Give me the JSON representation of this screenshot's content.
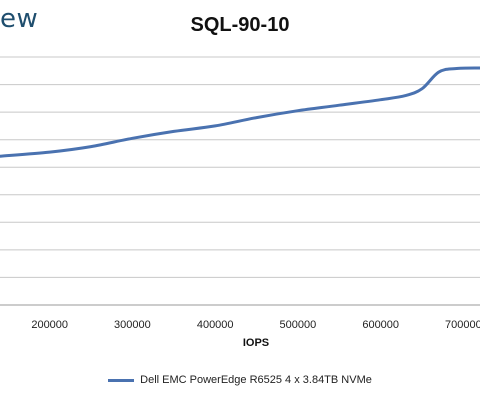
{
  "logo_fragment": "ew",
  "chart_data": {
    "type": "line",
    "title": "SQL-90-10",
    "xlabel": "IOPS",
    "ylabel": "",
    "xlim": [
      140000,
      720000
    ],
    "ylim": [
      0,
      9
    ],
    "x_ticks": [
      200000,
      300000,
      400000,
      500000,
      600000,
      700000
    ],
    "x_tick_labels": [
      "200000",
      "300000",
      "400000",
      "500000",
      "600000",
      "700000"
    ],
    "grid": true,
    "legend_position": "bottom",
    "series": [
      {
        "name": "Dell EMC PowerEdge R6525 4 x 3.84TB NVMe",
        "color": "#4a72b0",
        "x": [
          140000,
          200000,
          250000,
          300000,
          350000,
          400000,
          450000,
          500000,
          550000,
          600000,
          630000,
          650000,
          670000,
          690000,
          720000
        ],
        "y": [
          5.4,
          5.55,
          5.75,
          6.05,
          6.3,
          6.5,
          6.8,
          7.05,
          7.25,
          7.45,
          7.6,
          7.85,
          8.45,
          8.58,
          8.6
        ]
      }
    ]
  }
}
